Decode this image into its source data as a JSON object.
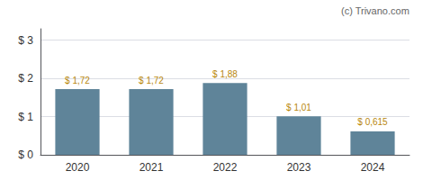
{
  "chart_data": {
    "type": "bar",
    "categories": [
      "2020",
      "2021",
      "2022",
      "2023",
      "2024"
    ],
    "values": [
      1.72,
      1.72,
      1.88,
      1.01,
      0.615
    ],
    "value_labels": [
      "$ 1,72",
      "$ 1,72",
      "$ 1,88",
      "$ 1,01",
      "$ 0,615"
    ],
    "data_labels": true,
    "color": "#5f8499",
    "ylim": [
      0,
      3.3
    ],
    "yticks": [
      {
        "value": 0,
        "label": "$ 0"
      },
      {
        "value": 1,
        "label": "$ 1"
      },
      {
        "value": 2,
        "label": "$ 2"
      },
      {
        "value": 3,
        "label": "$ 3"
      }
    ],
    "grid": true,
    "annotation": "(c) Trivano.com"
  }
}
